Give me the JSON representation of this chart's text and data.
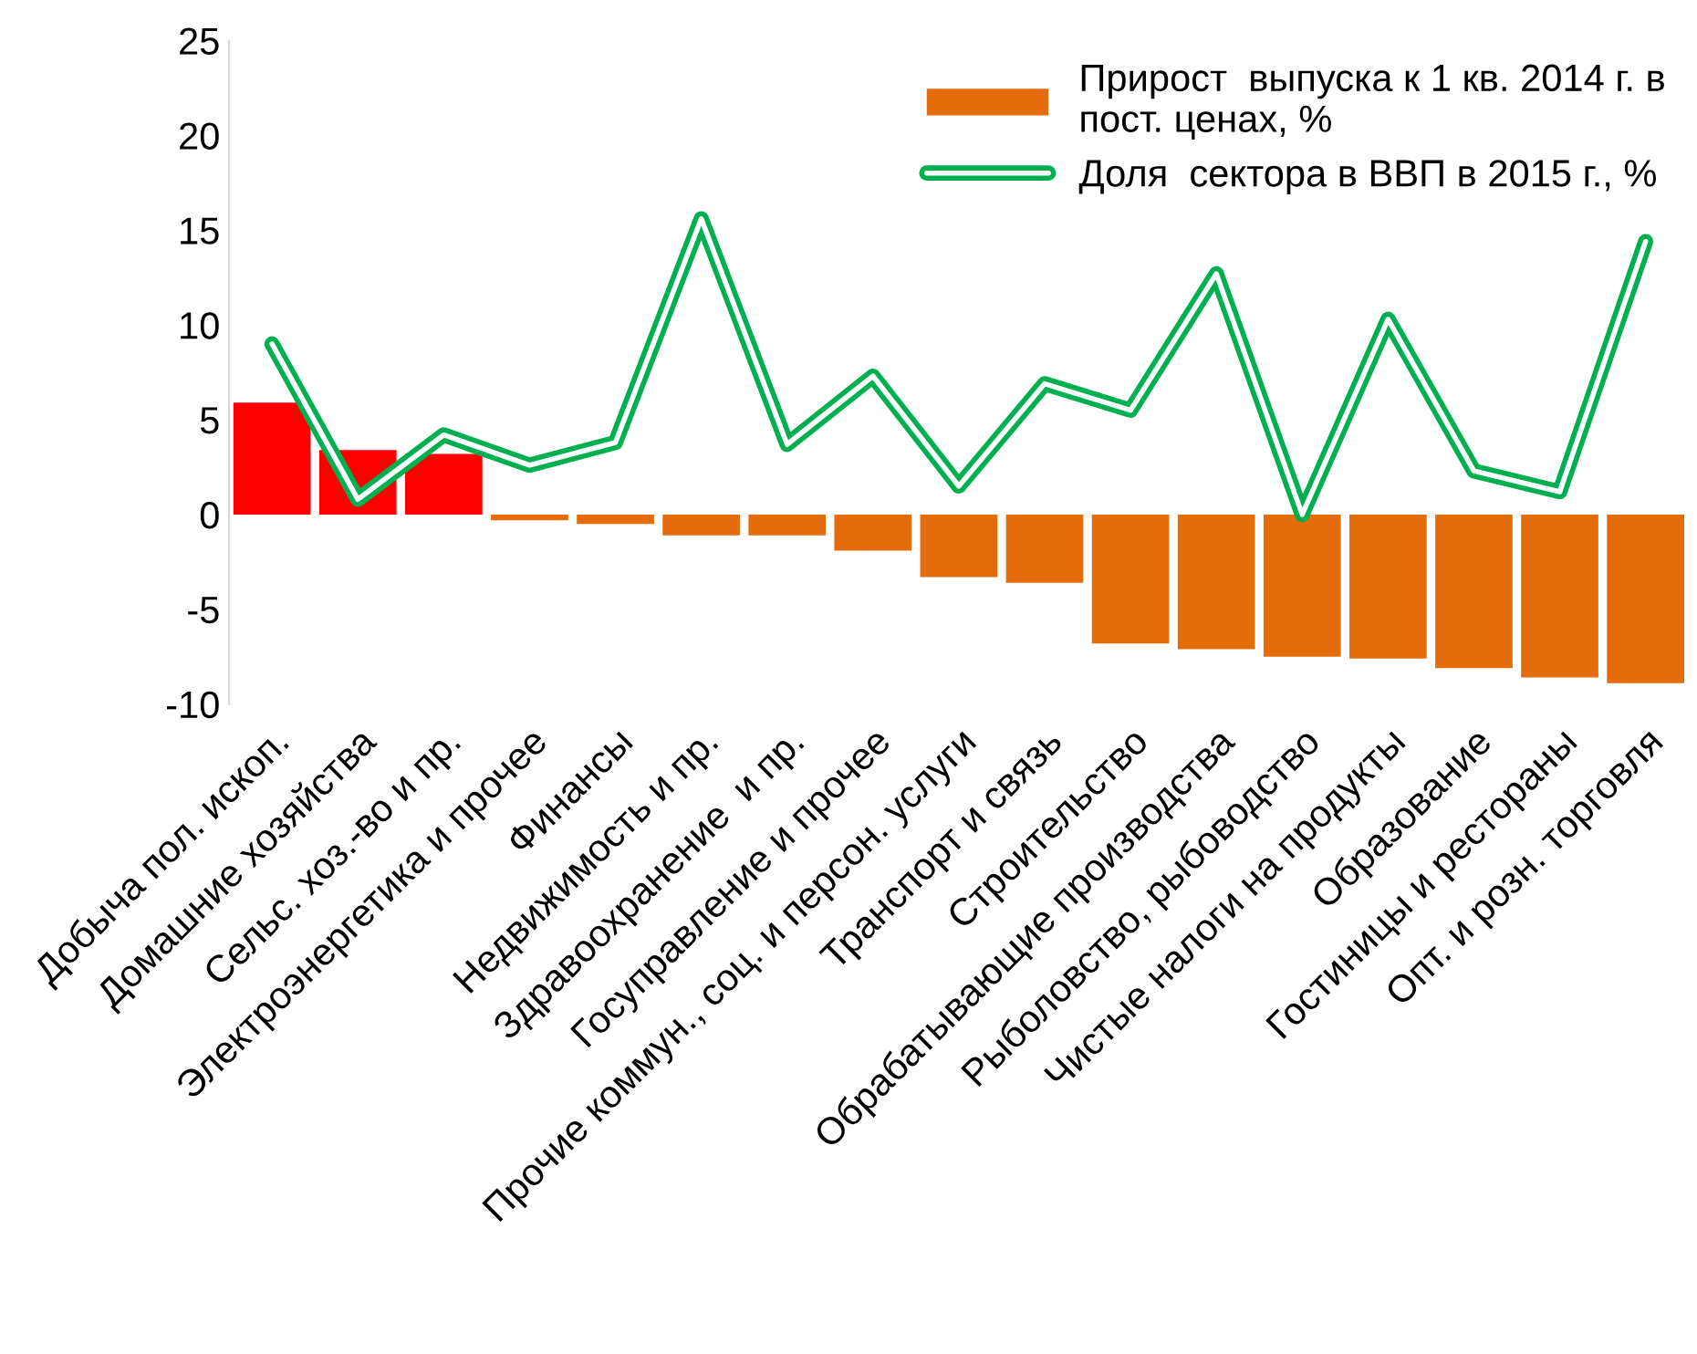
{
  "chart_data": {
    "type": "bar",
    "categories": [
      "Добыча пол. ископ.",
      "Домашние хозяйства",
      "Сельс. хоз.-во и пр.",
      "Электроэнергетика и прочее",
      "Финансы",
      "Недвижимость и пр.",
      "Здравоохранение  и пр.",
      "Госуправление и прочее",
      "Прочие коммун., соц. и персон. услуги",
      "Транспорт и связь",
      "Строительство",
      "Обрабатывающие производства",
      "Рыболовство, рыбоводство",
      "Чистые налоги на продукты",
      "Образование",
      "Гостиницы и рестораны",
      "Опт. и розн. торговля"
    ],
    "series": [
      {
        "name": "Прирост  выпуска к 1 кв. 2014 г. в\nпост. ценах, %",
        "color": "#e46c0a",
        "colors": [
          "#ff0000",
          "#ff0000",
          "#ff0000",
          "#e46c0a",
          "#e46c0a",
          "#e46c0a",
          "#e46c0a",
          "#e46c0a",
          "#e46c0a",
          "#e46c0a",
          "#e46c0a",
          "#e46c0a",
          "#e46c0a",
          "#e46c0a",
          "#e46c0a",
          "#e46c0a",
          "#e46c0a"
        ],
        "values": [
          5.9,
          3.4,
          3.2,
          -0.3,
          -0.5,
          -1.1,
          -1.1,
          -1.9,
          -3.3,
          -3.6,
          -6.8,
          -7.1,
          -7.5,
          -7.6,
          -8.1,
          -8.6,
          -8.9
        ]
      },
      {
        "name": "Доля  сектора в ВВП в 2015 г., %",
        "type": "line",
        "color": "#00b050",
        "values": [
          9.0,
          0.8,
          4.2,
          2.6,
          3.8,
          15.6,
          3.7,
          7.3,
          1.5,
          6.9,
          5.5,
          12.7,
          0.0,
          10.3,
          2.3,
          1.2,
          14.4
        ]
      }
    ],
    "ylim": [
      -10,
      25
    ],
    "yticks": [
      -10,
      -5,
      0,
      5,
      10,
      15,
      20,
      25
    ],
    "grid": false,
    "legend": "top right"
  }
}
